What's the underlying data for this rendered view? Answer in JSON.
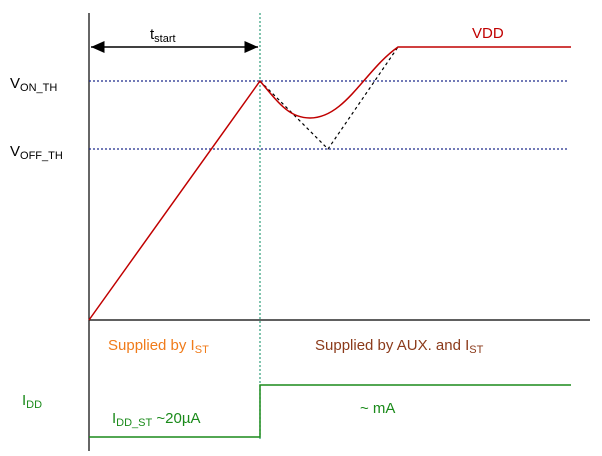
{
  "labels": {
    "t_main": "t",
    "t_sub": "start",
    "von_main": "V",
    "von_sub": "ON_TH",
    "voff_main": "V",
    "voff_sub": "OFF_TH",
    "vdd": "VDD",
    "supplied_ist_main": "Supplied by I",
    "supplied_ist_sub": "ST",
    "supplied_aux_main": "Supplied by AUX. and I",
    "supplied_aux_sub": "ST",
    "idd_main": "I",
    "idd_sub": "DD",
    "idd_st_main": "I",
    "idd_st_sub": "DD_ST",
    "idd_st_value": " ~20µA",
    "ma": "~ mA"
  },
  "colors": {
    "axis": "#000000",
    "vdd": "#c00000",
    "threshold": "#1f2a8c",
    "marker": "#2e9e7a",
    "idd": "#1a8a1a",
    "supplied_ist": "#f07b1a",
    "supplied_aux": "#8b3a1a"
  }
}
